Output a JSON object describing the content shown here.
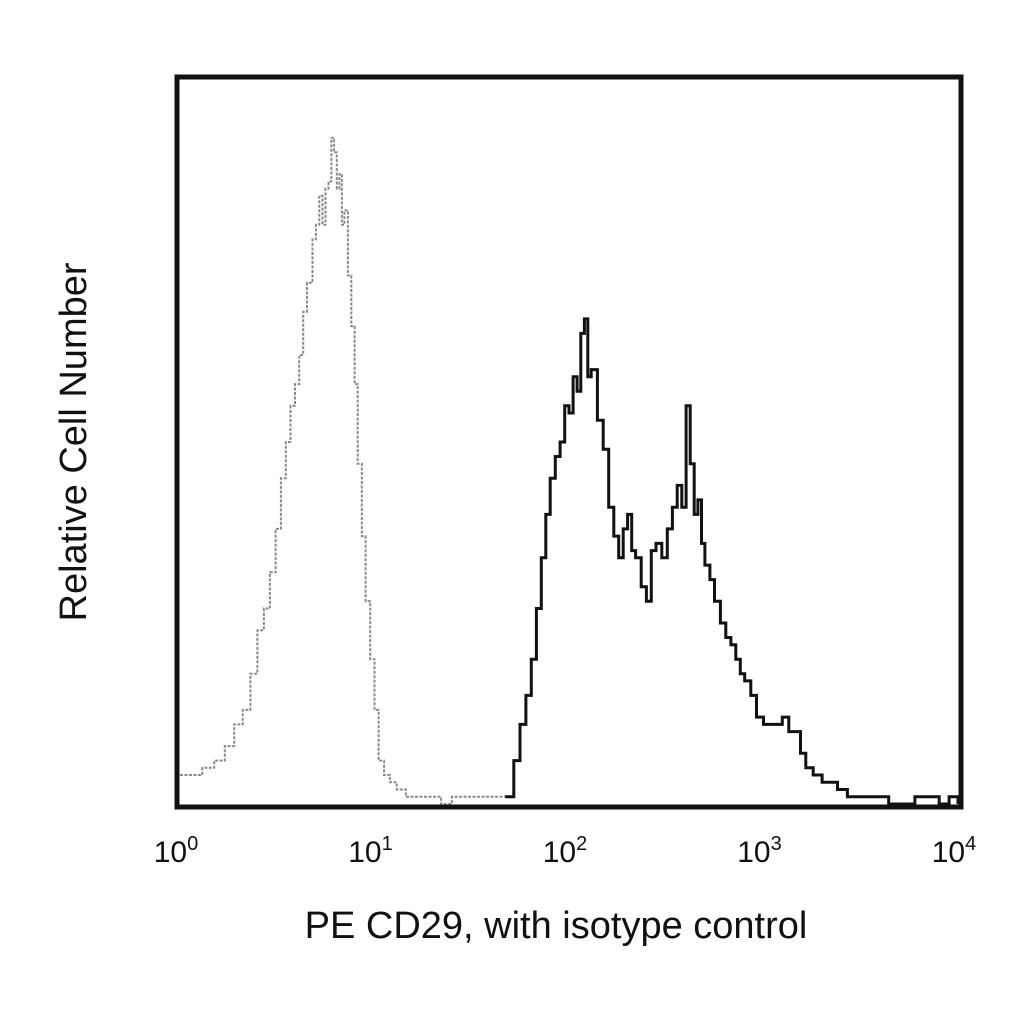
{
  "chart_data": {
    "type": "line",
    "title": "",
    "xlabel": "PE CD29, with isotype control",
    "ylabel": "Relative Cell Number",
    "x_scale": "log",
    "xlim": [
      1,
      10000
    ],
    "ylim": [
      0,
      100
    ],
    "grid": false,
    "x_ticks": [
      {
        "value": 1,
        "base": "10",
        "exp": "0"
      },
      {
        "value": 10,
        "base": "10",
        "exp": "1"
      },
      {
        "value": 100,
        "base": "10",
        "exp": "2"
      },
      {
        "value": 1000,
        "base": "10",
        "exp": "3"
      },
      {
        "value": 10000,
        "base": "10",
        "exp": "4"
      }
    ],
    "series": [
      {
        "role": "isotype control",
        "color": "#8a8a8a",
        "x": [
          1.0,
          1.15,
          1.3,
          1.5,
          1.7,
          1.9,
          2.1,
          2.3,
          2.5,
          2.7,
          2.9,
          3.1,
          3.3,
          3.5,
          3.7,
          3.9,
          4.1,
          4.3,
          4.5,
          4.8,
          5.0,
          5.2,
          5.4,
          5.6,
          5.8,
          6.0,
          6.2,
          6.4,
          6.6,
          6.8,
          7.0,
          7.3,
          7.6,
          7.9,
          8.2,
          8.6,
          9.0,
          9.5,
          10.0,
          10.5,
          11.2,
          12.0,
          13.0,
          14.5,
          16.0,
          18.0,
          20.0,
          22.0,
          25.0,
          28.0,
          32.0,
          36.0,
          40.0,
          44.0,
          47.0
        ],
        "y": [
          4,
          4,
          5,
          6,
          8,
          11,
          13,
          18,
          24,
          27,
          32,
          38,
          45,
          50,
          55,
          58,
          62,
          68,
          72,
          78,
          80,
          84,
          80,
          85,
          86,
          92,
          90,
          85,
          87,
          80,
          82,
          73,
          66,
          58,
          47,
          37,
          28,
          20,
          13,
          6,
          4,
          3,
          2,
          1,
          1,
          1,
          1,
          0,
          1,
          1,
          1,
          1,
          1,
          1,
          1
        ]
      },
      {
        "role": "PE CD29",
        "color": "#111111",
        "x": [
          47,
          52,
          56,
          60,
          64,
          68,
          72,
          76,
          80,
          85,
          90,
          95,
          100,
          105,
          110,
          115,
          120,
          125,
          130,
          140,
          150,
          160,
          170,
          180,
          190,
          200,
          210,
          220,
          235,
          250,
          265,
          280,
          300,
          320,
          340,
          360,
          380,
          400,
          420,
          440,
          460,
          480,
          500,
          530,
          560,
          600,
          640,
          680,
          720,
          760,
          800,
          860,
          920,
          1000,
          1080,
          1160,
          1250,
          1350,
          1450,
          1550,
          1650,
          1800,
          2000,
          2200,
          2400,
          2700,
          3000,
          3400,
          3800,
          4400,
          5000,
          6000,
          7000,
          8000,
          9000,
          10000
        ],
        "y": [
          1,
          6,
          11,
          15,
          20,
          27,
          34,
          40,
          45,
          48,
          50,
          55,
          54,
          59,
          57,
          65,
          67,
          59,
          60,
          53,
          49,
          41,
          37,
          34,
          38,
          40,
          35,
          34,
          30,
          28,
          35,
          36,
          34,
          38,
          41,
          44,
          41,
          55,
          47,
          40,
          42,
          36,
          33,
          31,
          28,
          25,
          23,
          22,
          20,
          18,
          17,
          15,
          12,
          11,
          11,
          11,
          12,
          10,
          10,
          7,
          5,
          4,
          3,
          3,
          2,
          1,
          1,
          1,
          1,
          0,
          0,
          1,
          1,
          0,
          1,
          0
        ]
      }
    ]
  }
}
